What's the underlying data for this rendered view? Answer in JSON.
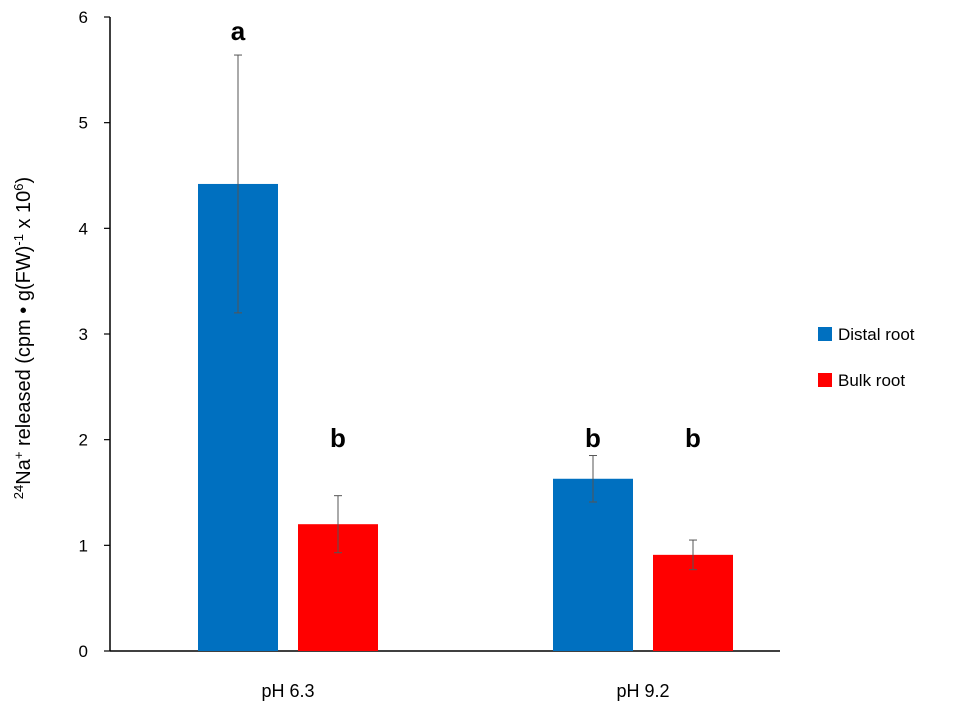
{
  "chart_data": {
    "type": "bar",
    "categories": [
      "pH 6.3",
      "pH 9.2"
    ],
    "series": [
      {
        "name": "Distal root",
        "color": "#0070C0",
        "values": [
          4.42,
          1.63
        ],
        "error": [
          1.22,
          0.22
        ],
        "significance": [
          "a",
          "b"
        ]
      },
      {
        "name": "Bulk root",
        "color": "#FF0000",
        "values": [
          1.2,
          0.91
        ],
        "error": [
          0.27,
          0.14
        ],
        "significance": [
          "b",
          "b"
        ]
      }
    ],
    "ylabel": {
      "base_pre": "",
      "sup1": "24",
      "part1": "Na",
      "sup2": "+",
      "part2": " released (cpm • g(FW)",
      "sup3": "-1",
      "part3": " x 10",
      "sup4": "6",
      "part4": ")"
    },
    "ylim": [
      0,
      6
    ],
    "yticks": [
      0,
      1,
      2,
      3,
      4,
      5,
      6
    ],
    "grid": false,
    "legend": "right"
  }
}
